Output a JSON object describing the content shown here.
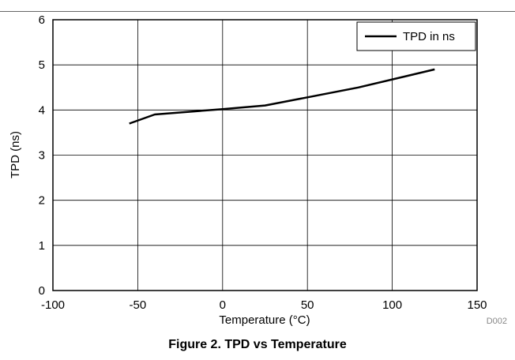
{
  "chart_data": {
    "type": "line",
    "xlabel": "Temperature (°C)",
    "ylabel": "TPD (ns)",
    "xlim": [
      -100,
      150
    ],
    "ylim": [
      0,
      6
    ],
    "xticks": [
      -100,
      -50,
      0,
      50,
      100,
      150
    ],
    "yticks": [
      0,
      1,
      2,
      3,
      4,
      5,
      6
    ],
    "grid": true,
    "legend_position": "top-right",
    "series": [
      {
        "name": "TPD in ns",
        "color": "#000000",
        "x": [
          -55,
          -40,
          0,
          25,
          50,
          80,
          125
        ],
        "y": [
          3.7,
          3.9,
          4.02,
          4.1,
          4.28,
          4.5,
          4.9
        ]
      }
    ]
  },
  "figure_code": "D002",
  "caption": "Figure 2. TPD vs Temperature"
}
